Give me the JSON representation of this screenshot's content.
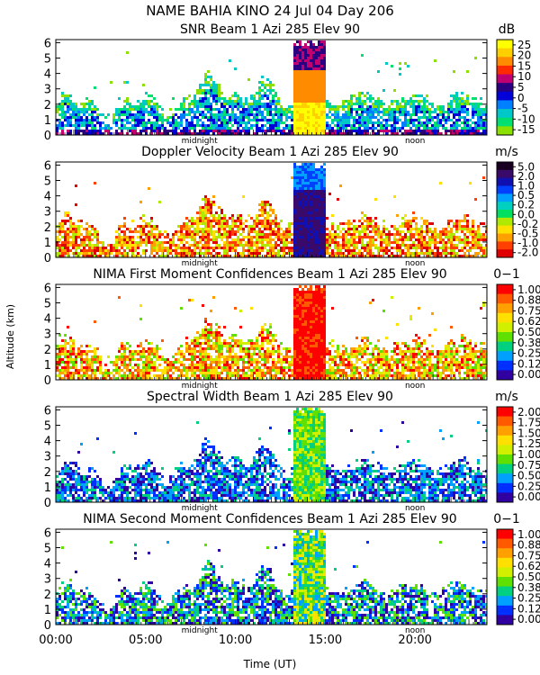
{
  "header": {
    "title": "NAME BAHIA KINO   24 Jul 04 Day 206"
  },
  "x_axis": {
    "label": "Time (UT)",
    "range": [
      0,
      24
    ],
    "ticks": [
      {
        "value": 0,
        "label": "00:00"
      },
      {
        "value": 5,
        "label": "05:00"
      },
      {
        "value": 10,
        "label": "10:00"
      },
      {
        "value": 15,
        "label": "15:00"
      },
      {
        "value": 20,
        "label": "20:00"
      }
    ],
    "markers": [
      {
        "value": 8,
        "label": "midnight"
      },
      {
        "value": 20,
        "label": "noon"
      }
    ]
  },
  "y_axis": {
    "label": "Altitude (km)",
    "range": [
      0,
      6.2
    ],
    "ticks": [
      "0",
      "1",
      "2",
      "3",
      "4",
      "5",
      "6"
    ]
  },
  "chart_data": [
    {
      "type": "heatmap",
      "title": "SNR Beam 1 Azi 285 Elev 90",
      "unit": "dB",
      "xlabel": "Time (UT)",
      "ylabel": "Altitude (km)",
      "xlim": [
        0,
        24
      ],
      "ylim": [
        0,
        6.2
      ],
      "colorbar": {
        "labels": [
          "25",
          "20",
          "15",
          "10",
          "5",
          "0",
          "-5",
          "-10",
          "-15"
        ],
        "colors": [
          "#ffff00",
          "#ffd000",
          "#ff8c00",
          "#ff2a00",
          "#c00070",
          "#2b0080",
          "#0000d8",
          "#0080ff",
          "#00c8c8",
          "#00e070",
          "#8ce000"
        ]
      }
    },
    {
      "type": "heatmap",
      "title": "Doppler Velocity Beam 1 Azi 285 Elev 90",
      "unit": "m/s",
      "xlabel": "Time (UT)",
      "ylabel": "Altitude (km)",
      "xlim": [
        0,
        24
      ],
      "ylim": [
        0,
        6.2
      ],
      "colorbar": {
        "labels": [
          "5.0",
          "2.0",
          "1.0",
          "0.5",
          "0.2",
          "0.0",
          "-0.2",
          "-0.5",
          "-1.0",
          "-2.0"
        ],
        "colors": [
          "#1a0020",
          "#3a0a6a",
          "#1010b0",
          "#0040ff",
          "#00a0ff",
          "#00d0c0",
          "#00e060",
          "#b0e800",
          "#ffe000",
          "#ffa000",
          "#ff4000",
          "#e00000"
        ]
      }
    },
    {
      "type": "heatmap",
      "title": "NIMA First Moment Confidences Beam 1 Azi 285 Elev 90",
      "unit": "0−1",
      "xlabel": "Time (UT)",
      "ylabel": "Altitude (km)",
      "xlim": [
        0,
        24
      ],
      "ylim": [
        0,
        6.2
      ],
      "colorbar": {
        "labels": [
          "1.00",
          "0.88",
          "0.75",
          "0.62",
          "0.50",
          "0.38",
          "0.25",
          "0.12",
          "0.00"
        ],
        "colors": [
          "#ff0000",
          "#ff5a00",
          "#ffa000",
          "#ffe000",
          "#d0f000",
          "#60e000",
          "#00d080",
          "#00a0ff",
          "#0030ff",
          "#3000a0"
        ]
      }
    },
    {
      "type": "heatmap",
      "title": "Spectral Width Beam 1 Azi 285 Elev 90",
      "unit": "m/s",
      "xlabel": "Time (UT)",
      "ylabel": "Altitude (km)",
      "xlim": [
        0,
        24
      ],
      "ylim": [
        0,
        6.2
      ],
      "colorbar": {
        "labels": [
          "2.00",
          "1.75",
          "1.50",
          "1.25",
          "1.00",
          "0.75",
          "0.50",
          "0.25",
          "0.00"
        ],
        "colors": [
          "#ff0000",
          "#ff5a00",
          "#ffa000",
          "#ffe000",
          "#d0f000",
          "#60e000",
          "#00d080",
          "#00a0ff",
          "#0030ff",
          "#3000a0"
        ]
      }
    },
    {
      "type": "heatmap",
      "title": "NIMA Second Moment Confidences Beam 1 Azi 285 Elev 90",
      "unit": "0−1",
      "xlabel": "Time (UT)",
      "ylabel": "Altitude (km)",
      "xlim": [
        0,
        24
      ],
      "ylim": [
        0,
        6.2
      ],
      "colorbar": {
        "labels": [
          "1.00",
          "0.88",
          "0.75",
          "0.62",
          "0.50",
          "0.38",
          "0.25",
          "0.12",
          "0.00"
        ],
        "colors": [
          "#ff0000",
          "#ff5a00",
          "#ffa000",
          "#ffe000",
          "#d0f000",
          "#60e000",
          "#00d080",
          "#00a0ff",
          "#0030ff",
          "#3000a0"
        ]
      }
    }
  ]
}
